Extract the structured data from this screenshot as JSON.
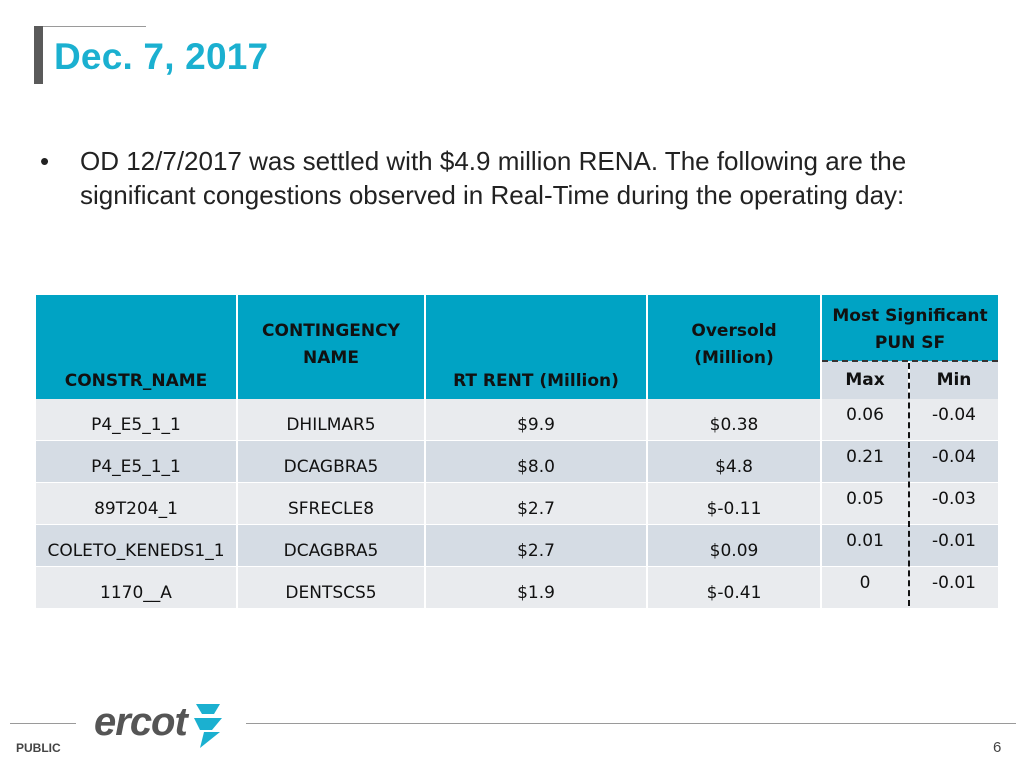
{
  "slide": {
    "title": "Dec. 7, 2017",
    "bullet_marker": "•",
    "bullet_text": "OD 12/7/2017 was settled with $4.9 million RENA. The following are the significant congestions observed in Real-Time during the operating day:"
  },
  "table": {
    "headers": {
      "constr_name": "CONSTR_NAME",
      "contingency_line1": "CONTINGENCY",
      "contingency_line2": "NAME",
      "rt_rent": "RT RENT (Million)",
      "oversold_line1": "Oversold",
      "oversold_line2": "(Million)",
      "pun_line1": "Most Significant",
      "pun_line2": "PUN SF",
      "max": "Max",
      "min": "Min"
    },
    "rows": [
      {
        "constr": "P4_E5_1_1",
        "contingency": "DHILMAR5",
        "rt_rent": "$9.9",
        "oversold": "$0.38",
        "max": "0.06",
        "min": "-0.04"
      },
      {
        "constr": "P4_E5_1_1",
        "contingency": "DCAGBRA5",
        "rt_rent": "$8.0",
        "oversold": "$4.8",
        "max": "0.21",
        "min": "-0.04"
      },
      {
        "constr": "89T204_1",
        "contingency": "SFRECLE8",
        "rt_rent": "$2.7",
        "oversold": "$-0.11",
        "max": "0.05",
        "min": "-0.03"
      },
      {
        "constr": "COLETO_KENEDS1_1",
        "contingency": "DCAGBRA5",
        "rt_rent": "$2.7",
        "oversold": "$0.09",
        "max": "0.01",
        "min": "-0.01"
      },
      {
        "constr": "1170__A",
        "contingency": "DENTSCS5",
        "rt_rent": "$1.9",
        "oversold": "$-0.41",
        "max": "0",
        "min": "-0.01"
      }
    ]
  },
  "footer": {
    "logo_text": "ercot",
    "classification": "PUBLIC",
    "page_number": "6"
  },
  "colors": {
    "accent": "#1bb0d0",
    "header_fill": "#00a3c4",
    "row_light": "#e9ebee",
    "row_dark": "#d5dce4"
  }
}
